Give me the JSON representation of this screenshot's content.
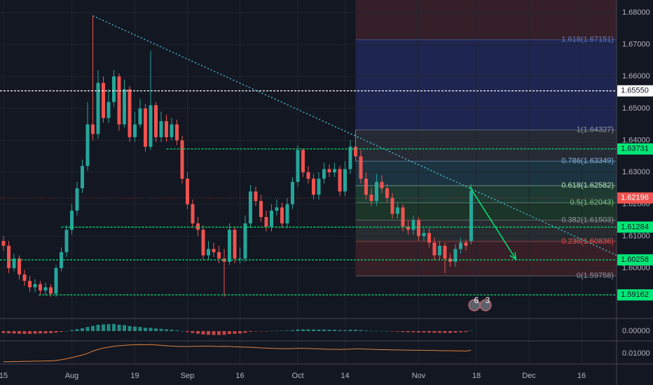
{
  "chart_data": {
    "type": "candlestick",
    "xlim": [
      -0.667,
      116.667
    ],
    "xticks": [
      {
        "value": 0,
        "label": "15"
      },
      {
        "value": 13,
        "label": "Aug"
      },
      {
        "value": 25,
        "label": "19"
      },
      {
        "value": 35,
        "label": "Sep"
      },
      {
        "value": 45,
        "label": "16"
      },
      {
        "value": 56,
        "label": "Oct"
      },
      {
        "value": 65,
        "label": "14"
      },
      {
        "value": 79,
        "label": "Nov"
      },
      {
        "value": 90,
        "label": "18"
      },
      {
        "value": 100,
        "label": "Dec"
      },
      {
        "value": 110,
        "label": "16"
      }
    ],
    "ylim": [
      1.58423,
      1.68394
    ],
    "yticks": [
      {
        "value": 1.68,
        "label": "1.68000"
      },
      {
        "value": 1.67,
        "label": "1.67000"
      },
      {
        "value": 1.66,
        "label": "1.66000"
      },
      {
        "value": 1.65,
        "label": "1.65000"
      },
      {
        "value": 1.64,
        "label": "1.64000"
      },
      {
        "value": 1.63,
        "label": "1.63000"
      },
      {
        "value": 1.62,
        "label": "1.62000"
      },
      {
        "value": 1.61,
        "label": "1.61000"
      },
      {
        "value": 1.6,
        "label": "1.60000"
      }
    ],
    "grid": true,
    "up_color": "#26a69a",
    "down_color": "#ef5350",
    "open": [
      1.6085,
      1.607,
      1.6,
      1.603,
      1.598,
      1.596,
      1.594,
      1.595,
      1.593,
      1.594,
      1.592,
      1.6,
      1.605,
      1.612,
      1.618,
      1.625,
      1.632,
      1.645,
      1.642,
      1.658,
      1.647,
      1.652,
      1.66,
      1.645,
      1.656,
      1.641,
      1.645,
      1.65,
      1.638,
      1.651,
      1.641,
      1.646,
      1.641,
      1.645,
      1.64,
      1.628,
      1.62,
      1.614,
      1.612,
      1.604,
      1.606,
      1.605,
      1.603,
      1.602,
      1.612,
      1.603,
      1.603,
      1.614,
      1.624,
      1.621,
      1.616,
      1.613,
      1.618,
      1.619,
      1.614,
      1.62,
      1.627,
      1.637,
      1.63,
      1.628,
      1.623,
      1.628,
      1.631,
      1.63,
      1.631,
      1.624,
      1.631,
      1.638,
      1.635,
      1.628,
      1.623,
      1.621,
      1.627,
      1.625,
      1.622,
      1.617,
      1.619,
      1.613,
      1.612,
      1.615,
      1.61,
      1.611,
      1.608,
      1.604,
      1.607,
      1.603,
      1.602,
      1.606,
      1.608,
      1.6085
    ],
    "high": [
      1.61,
      1.6085,
      1.6045,
      1.604,
      1.5995,
      1.5975,
      1.5965,
      1.596,
      1.5955,
      1.595,
      1.601,
      1.6065,
      1.6135,
      1.62,
      1.627,
      1.634,
      1.652,
      1.679,
      1.662,
      1.66,
      1.656,
      1.662,
      1.661,
      1.659,
      1.657,
      1.649,
      1.653,
      1.6515,
      1.668,
      1.652,
      1.649,
      1.648,
      1.647,
      1.6465,
      1.6415,
      1.63,
      1.6215,
      1.616,
      1.6135,
      1.6085,
      1.608,
      1.607,
      1.606,
      1.614,
      1.613,
      1.6065,
      1.6165,
      1.626,
      1.6255,
      1.623,
      1.618,
      1.62,
      1.6215,
      1.6205,
      1.622,
      1.6285,
      1.6385,
      1.6375,
      1.632,
      1.6295,
      1.63,
      1.633,
      1.6325,
      1.633,
      1.632,
      1.6335,
      1.64,
      1.6433,
      1.637,
      1.63,
      1.625,
      1.6295,
      1.629,
      1.6265,
      1.6235,
      1.6205,
      1.62,
      1.615,
      1.6165,
      1.616,
      1.6125,
      1.6125,
      1.6095,
      1.6085,
      1.608,
      1.6045,
      1.6075,
      1.6095,
      1.609,
      1.6262
    ],
    "low": [
      1.6055,
      1.5985,
      1.599,
      1.5965,
      1.5945,
      1.5925,
      1.5925,
      1.5915,
      1.5915,
      1.591,
      1.591,
      1.599,
      1.6035,
      1.6105,
      1.6165,
      1.6235,
      1.6305,
      1.64,
      1.6405,
      1.6455,
      1.6455,
      1.6505,
      1.643,
      1.644,
      1.6395,
      1.6395,
      1.644,
      1.6365,
      1.637,
      1.6395,
      1.6395,
      1.6395,
      1.64,
      1.6385,
      1.6265,
      1.6185,
      1.6125,
      1.61,
      1.6025,
      1.6025,
      1.6035,
      1.6015,
      1.591,
      1.601,
      1.6015,
      1.6015,
      1.602,
      1.6125,
      1.6195,
      1.6145,
      1.6115,
      1.6115,
      1.6165,
      1.6125,
      1.6125,
      1.6185,
      1.6255,
      1.6285,
      1.6265,
      1.6215,
      1.6215,
      1.6265,
      1.6285,
      1.6285,
      1.6225,
      1.6225,
      1.6295,
      1.6335,
      1.6265,
      1.6215,
      1.6195,
      1.6195,
      1.6235,
      1.6205,
      1.6155,
      1.6155,
      1.6115,
      1.6105,
      1.6105,
      1.6085,
      1.6085,
      1.6065,
      1.6025,
      1.6025,
      1.5985,
      1.6005,
      1.6005,
      1.6045,
      1.6055,
      1.6075
    ],
    "close": [
      1.607,
      1.6,
      1.603,
      1.598,
      1.596,
      1.594,
      1.595,
      1.593,
      1.594,
      1.592,
      1.6,
      1.605,
      1.612,
      1.618,
      1.625,
      1.632,
      1.645,
      1.642,
      1.658,
      1.647,
      1.652,
      1.66,
      1.645,
      1.656,
      1.641,
      1.645,
      1.65,
      1.638,
      1.651,
      1.641,
      1.646,
      1.641,
      1.645,
      1.64,
      1.628,
      1.62,
      1.614,
      1.612,
      1.604,
      1.606,
      1.605,
      1.603,
      1.602,
      1.612,
      1.603,
      1.603,
      1.614,
      1.624,
      1.621,
      1.616,
      1.613,
      1.618,
      1.619,
      1.614,
      1.62,
      1.627,
      1.637,
      1.63,
      1.628,
      1.623,
      1.628,
      1.631,
      1.63,
      1.631,
      1.624,
      1.631,
      1.638,
      1.635,
      1.628,
      1.623,
      1.621,
      1.627,
      1.625,
      1.622,
      1.617,
      1.619,
      1.613,
      1.612,
      1.615,
      1.61,
      1.611,
      1.608,
      1.604,
      1.607,
      1.603,
      1.602,
      1.606,
      1.608,
      1.607,
      1.6242
    ],
    "levels": [
      {
        "value": 1.6555,
        "label": "1.65550",
        "color": "#ffffff",
        "start": -0.667
      },
      {
        "value": 1.63731,
        "label": "1.63731",
        "color": "#00e676",
        "start": 31
      },
      {
        "value": 1.61284,
        "label": "1.61284",
        "color": "#00e676",
        "start": 11
      },
      {
        "value": 1.60258,
        "label": "1.60258",
        "color": "#00e676",
        "start": -0.667
      },
      {
        "value": 1.59162,
        "label": "1.59162",
        "color": "#00e676",
        "start": 6.7
      }
    ],
    "current_price": {
      "value": 1.62196,
      "label": "1.62196",
      "color": "#ef5350"
    },
    "fibonacci": {
      "start": 67,
      "top_color": "#35202a",
      "levels": [
        {
          "value": 1.67151,
          "label": "1.618(1.67151)",
          "color": "#5b7cc4",
          "fill": "#1e2550"
        },
        {
          "value": 1.64327,
          "label": "1(1.64327)",
          "color": "#9598a1",
          "fill": "#262a35"
        },
        {
          "value": 1.63349,
          "label": "0.786(1.63349)",
          "color": "#7fb8e6",
          "fill": "#1c3441"
        },
        {
          "value": 1.62582,
          "label": "0.618(1.62582)",
          "color": "#b5e6b8",
          "fill": "#1d3a33"
        },
        {
          "value": 1.62043,
          "label": "0.5(1.62043)",
          "color": "#81c784",
          "fill": "#1b3528"
        },
        {
          "value": 1.61503,
          "label": "0.382(1.61503)",
          "color": "#9598a1",
          "fill": "#272c30"
        },
        {
          "value": 1.60836,
          "label": "0.236(1.60836)",
          "color": "#ef5350",
          "fill": "#371f27"
        },
        {
          "value": 1.59758,
          "label": "0(1.59758)",
          "color": "#9598a1"
        }
      ]
    },
    "trendline": {
      "x": [
        17,
        116.667
      ],
      "y": [
        1.679,
        1.604
      ],
      "color": "#4dd0e1"
    },
    "arrow": {
      "x": [
        88.7,
        97.5
      ],
      "y": [
        1.6255,
        1.6028
      ],
      "color": "#00e676"
    },
    "events": [
      "6",
      "3"
    ],
    "indicators": [
      {
        "type": "histogram",
        "ylim": [
          -0.0049,
          0.006
        ],
        "yticks": [
          {
            "value": 0,
            "label": "0.00000"
          }
        ],
        "values": [
          -0.001,
          -0.0012,
          -0.0013,
          -0.0014,
          -0.0015,
          -0.0015,
          -0.0014,
          -0.0013,
          -0.0012,
          -0.0011,
          -0.0008,
          -0.0004,
          0.0,
          0.0005,
          0.001,
          0.0015,
          0.0022,
          0.0028,
          0.0034,
          0.0036,
          0.0037,
          0.0038,
          0.0034,
          0.0032,
          0.0027,
          0.0024,
          0.0022,
          0.0018,
          0.0017,
          0.0014,
          0.0012,
          0.0009,
          0.0007,
          0.0004,
          0.0,
          -0.0005,
          -0.001,
          -0.0014,
          -0.0018,
          -0.002,
          -0.0021,
          -0.0021,
          -0.002,
          -0.0016,
          -0.0015,
          -0.0013,
          -0.0009,
          -0.0004,
          -0.0002,
          -0.0001,
          -0.0001,
          0.0001,
          0.0002,
          0.0002,
          0.0003,
          0.0005,
          0.0008,
          0.0009,
          0.0009,
          0.0008,
          0.0008,
          0.0008,
          0.0007,
          0.0007,
          0.0005,
          0.0005,
          0.0007,
          0.0007,
          0.0005,
          0.0003,
          0.0001,
          0.0001,
          0.0001,
          0.0,
          -0.0002,
          -0.0003,
          -0.0005,
          -0.0006,
          -0.0006,
          -0.0007,
          -0.0007,
          -0.0008,
          -0.0009,
          -0.0009,
          -0.001,
          -0.001,
          -0.0008,
          -0.0006,
          -0.0005,
          0.0002
        ]
      },
      {
        "type": "line",
        "ylim": [
          0.005,
          0.016
        ],
        "yticks": [
          {
            "value": 0.01,
            "label": "0.01000"
          }
        ],
        "color": "#e0803a",
        "values": [
          0.0058,
          0.0058,
          0.0059,
          0.0059,
          0.006,
          0.006,
          0.0061,
          0.0061,
          0.0062,
          0.0062,
          0.0064,
          0.0068,
          0.0073,
          0.0079,
          0.0085,
          0.0092,
          0.01,
          0.0112,
          0.012,
          0.0127,
          0.0132,
          0.0136,
          0.0139,
          0.0141,
          0.0143,
          0.0144,
          0.0145,
          0.0144,
          0.0145,
          0.0143,
          0.0141,
          0.0139,
          0.0137,
          0.0136,
          0.0135,
          0.0135,
          0.0136,
          0.0136,
          0.0137,
          0.0137,
          0.0136,
          0.0135,
          0.0136,
          0.0135,
          0.0134,
          0.0133,
          0.0132,
          0.0131,
          0.013,
          0.0128,
          0.0127,
          0.0126,
          0.0125,
          0.0124,
          0.0124,
          0.0125,
          0.0126,
          0.0126,
          0.0125,
          0.0124,
          0.0123,
          0.0122,
          0.0121,
          0.0121,
          0.012,
          0.0121,
          0.0122,
          0.0123,
          0.0123,
          0.0122,
          0.0121,
          0.012,
          0.0119,
          0.0119,
          0.0118,
          0.0118,
          0.0117,
          0.0117,
          0.0116,
          0.0116,
          0.0116,
          0.0115,
          0.0115,
          0.0114,
          0.0114,
          0.0114,
          0.0113,
          0.0113,
          0.0112,
          0.0116
        ]
      }
    ]
  }
}
